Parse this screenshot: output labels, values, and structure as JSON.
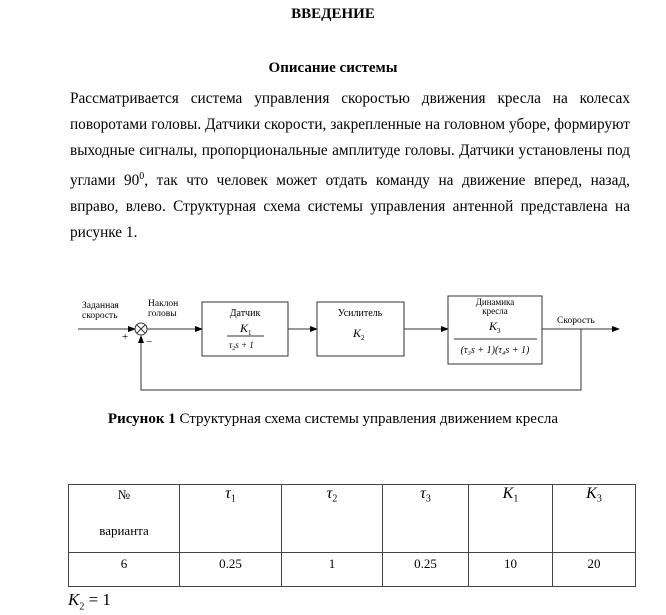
{
  "title": "ВВЕДЕНИЕ",
  "subtitle": "Описание системы",
  "paragraph": {
    "before_sup": "Рассматривается система управления скоростью движения кресла на колесах поворотами головы. Датчики скорости, закрепленные на головном уборе, формируют выходные сигналы, пропорциональные амплитуде головы. Датчики установлены под углами 90",
    "sup": "0",
    "after_sup": ", так что человек может отдать команду на движение вперед, назад, вправо, влево. Структурная схема системы управления антенной представлена на рисунке 1."
  },
  "diagram": {
    "input_label": [
      "Заданная",
      "скорость"
    ],
    "error_label": [
      "Наклон",
      "головы"
    ],
    "plus": "+",
    "minus": "−",
    "block1": {
      "name": "Датчик",
      "num": "K",
      "num_sub": "1",
      "den": "τ",
      "den_sub": "2",
      "den_rest": "s + 1"
    },
    "block2": {
      "name": "Усилитель",
      "gain": "K",
      "gain_sub": "2"
    },
    "block3": {
      "name": [
        "Динамика",
        "кресла"
      ],
      "num": "K",
      "num_sub": "3",
      "den": "(τ₃s + 1)(τ₄s + 1)"
    },
    "output_label": "Скорость"
  },
  "caption": {
    "bold": "Рисунок 1",
    "text": " Структурная схема системы управления движением кресла"
  },
  "table": {
    "header": {
      "variant_sym": "№",
      "variant_word": "варианта",
      "cols": [
        {
          "s": "τ",
          "sub": "1"
        },
        {
          "s": "τ",
          "sub": "2"
        },
        {
          "s": "τ",
          "sub": "3"
        },
        {
          "s": "K",
          "sub": "1"
        },
        {
          "s": "K",
          "sub": "3"
        }
      ]
    },
    "rows": [
      [
        "6",
        "0.25",
        "1",
        "0.25",
        "10",
        "20"
      ]
    ]
  },
  "note": {
    "s": "K",
    "sub": "2",
    "rest": " = 1"
  }
}
